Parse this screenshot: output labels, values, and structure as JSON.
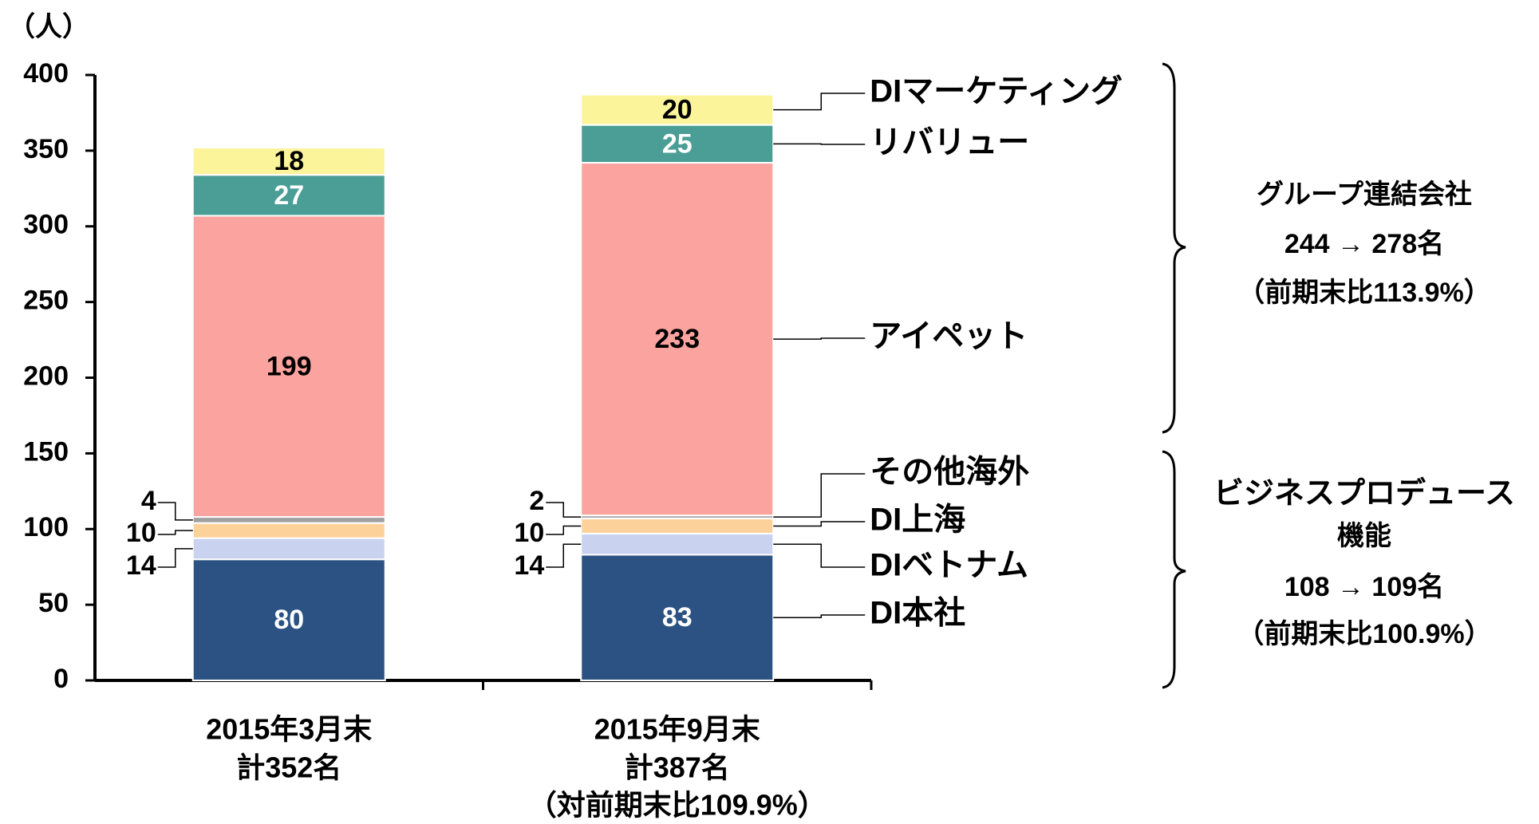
{
  "chart_data": {
    "type": "stacked_bar",
    "y_unit": "（人）",
    "categories": [
      "2015年3月末",
      "2015年9月末"
    ],
    "category_totals": [
      "計352名",
      "計387名"
    ],
    "category_note": "（対前期末比109.9%）",
    "ylim": [
      0,
      400
    ],
    "yticks": [
      0,
      50,
      100,
      150,
      200,
      250,
      300,
      350,
      400
    ],
    "series": [
      {
        "name": "DI本社",
        "color": "#2b5283",
        "label_color": "#ffffff",
        "values": [
          80,
          83
        ]
      },
      {
        "name": "DIベトナム",
        "color": "#c9d3f0",
        "label_color": "#000000",
        "values": [
          14,
          14
        ]
      },
      {
        "name": "DI上海",
        "color": "#fdd29a",
        "label_color": "#000000",
        "values": [
          10,
          10
        ]
      },
      {
        "name": "その他海外",
        "color": "#a0a0a0",
        "label_color": "#000000",
        "values": [
          4,
          2
        ]
      },
      {
        "name": "アイペット",
        "color": "#fba39e",
        "label_color": "#000000",
        "values": [
          199,
          233
        ]
      },
      {
        "name": "リバリュー",
        "color": "#4a9e95",
        "label_color": "#ffffff",
        "values": [
          27,
          25
        ]
      },
      {
        "name": "DIマーケティング",
        "color": "#fbf49a",
        "label_color": "#000000",
        "values": [
          18,
          20
        ]
      }
    ],
    "groups": [
      {
        "lines": [
          "グループ連結会社",
          "244 → 278名",
          "（前期末比113.9%）"
        ]
      },
      {
        "lines": [
          "ビジネスプロデュース",
          "機能",
          "108 → 109名",
          "（前期末比100.9%）"
        ]
      }
    ]
  }
}
